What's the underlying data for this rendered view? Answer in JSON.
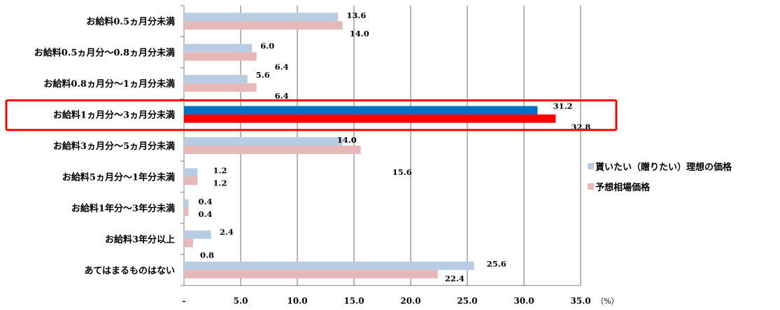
{
  "chart_data": {
    "type": "bar",
    "orientation": "horizontal",
    "categories": [
      "お給料0.5ヵ月分未満",
      "お給料0.5ヵ月分～0.8ヵ月分未満",
      "お給料0.8ヵ月分～1ヵ月分未満",
      "お給料1ヵ月分～3ヵ月分未満",
      "お給料3ヵ月分～5ヵ月分未満",
      "お給料5ヵ月分～1年分未満",
      "お給料1年分～3年分未満",
      "お給料3年分以上",
      "あてはまるものはない"
    ],
    "series": [
      {
        "name": "貰いたい（贈りたい）理想の価格",
        "values": [
          13.6,
          6.0,
          5.6,
          31.2,
          14.0,
          1.2,
          0.4,
          2.4,
          25.6
        ],
        "color": "#b8cce4",
        "highlight_color": "#0070c0"
      },
      {
        "name": "予想相場価格",
        "values": [
          14.0,
          6.4,
          6.4,
          32.8,
          15.6,
          1.2,
          0.4,
          0.8,
          22.4
        ],
        "color": "#e6b9b8",
        "highlight_color": "#ff0000"
      }
    ],
    "value_labels": [
      [
        "13.6",
        "6.0",
        "5.6",
        "31.2",
        "14.0",
        "1.2",
        "0.4",
        "2.4",
        "25.6"
      ],
      [
        "14.0",
        "6.4",
        "6.4",
        "32.8",
        "15.6",
        "1.2",
        "0.4",
        "0.8",
        "22.4"
      ]
    ],
    "highlight_index": 3,
    "highlight_box_color": "#ff0000",
    "xlim": [
      0,
      35
    ],
    "x_ticks": [
      "-",
      "5.0",
      "10.0",
      "15.0",
      "20.0",
      "25.0",
      "30.0",
      "35.0"
    ],
    "x_unit": "（%）",
    "grid": "vertical",
    "gridline_color": "#6e6e6e",
    "legend_position": "right"
  }
}
